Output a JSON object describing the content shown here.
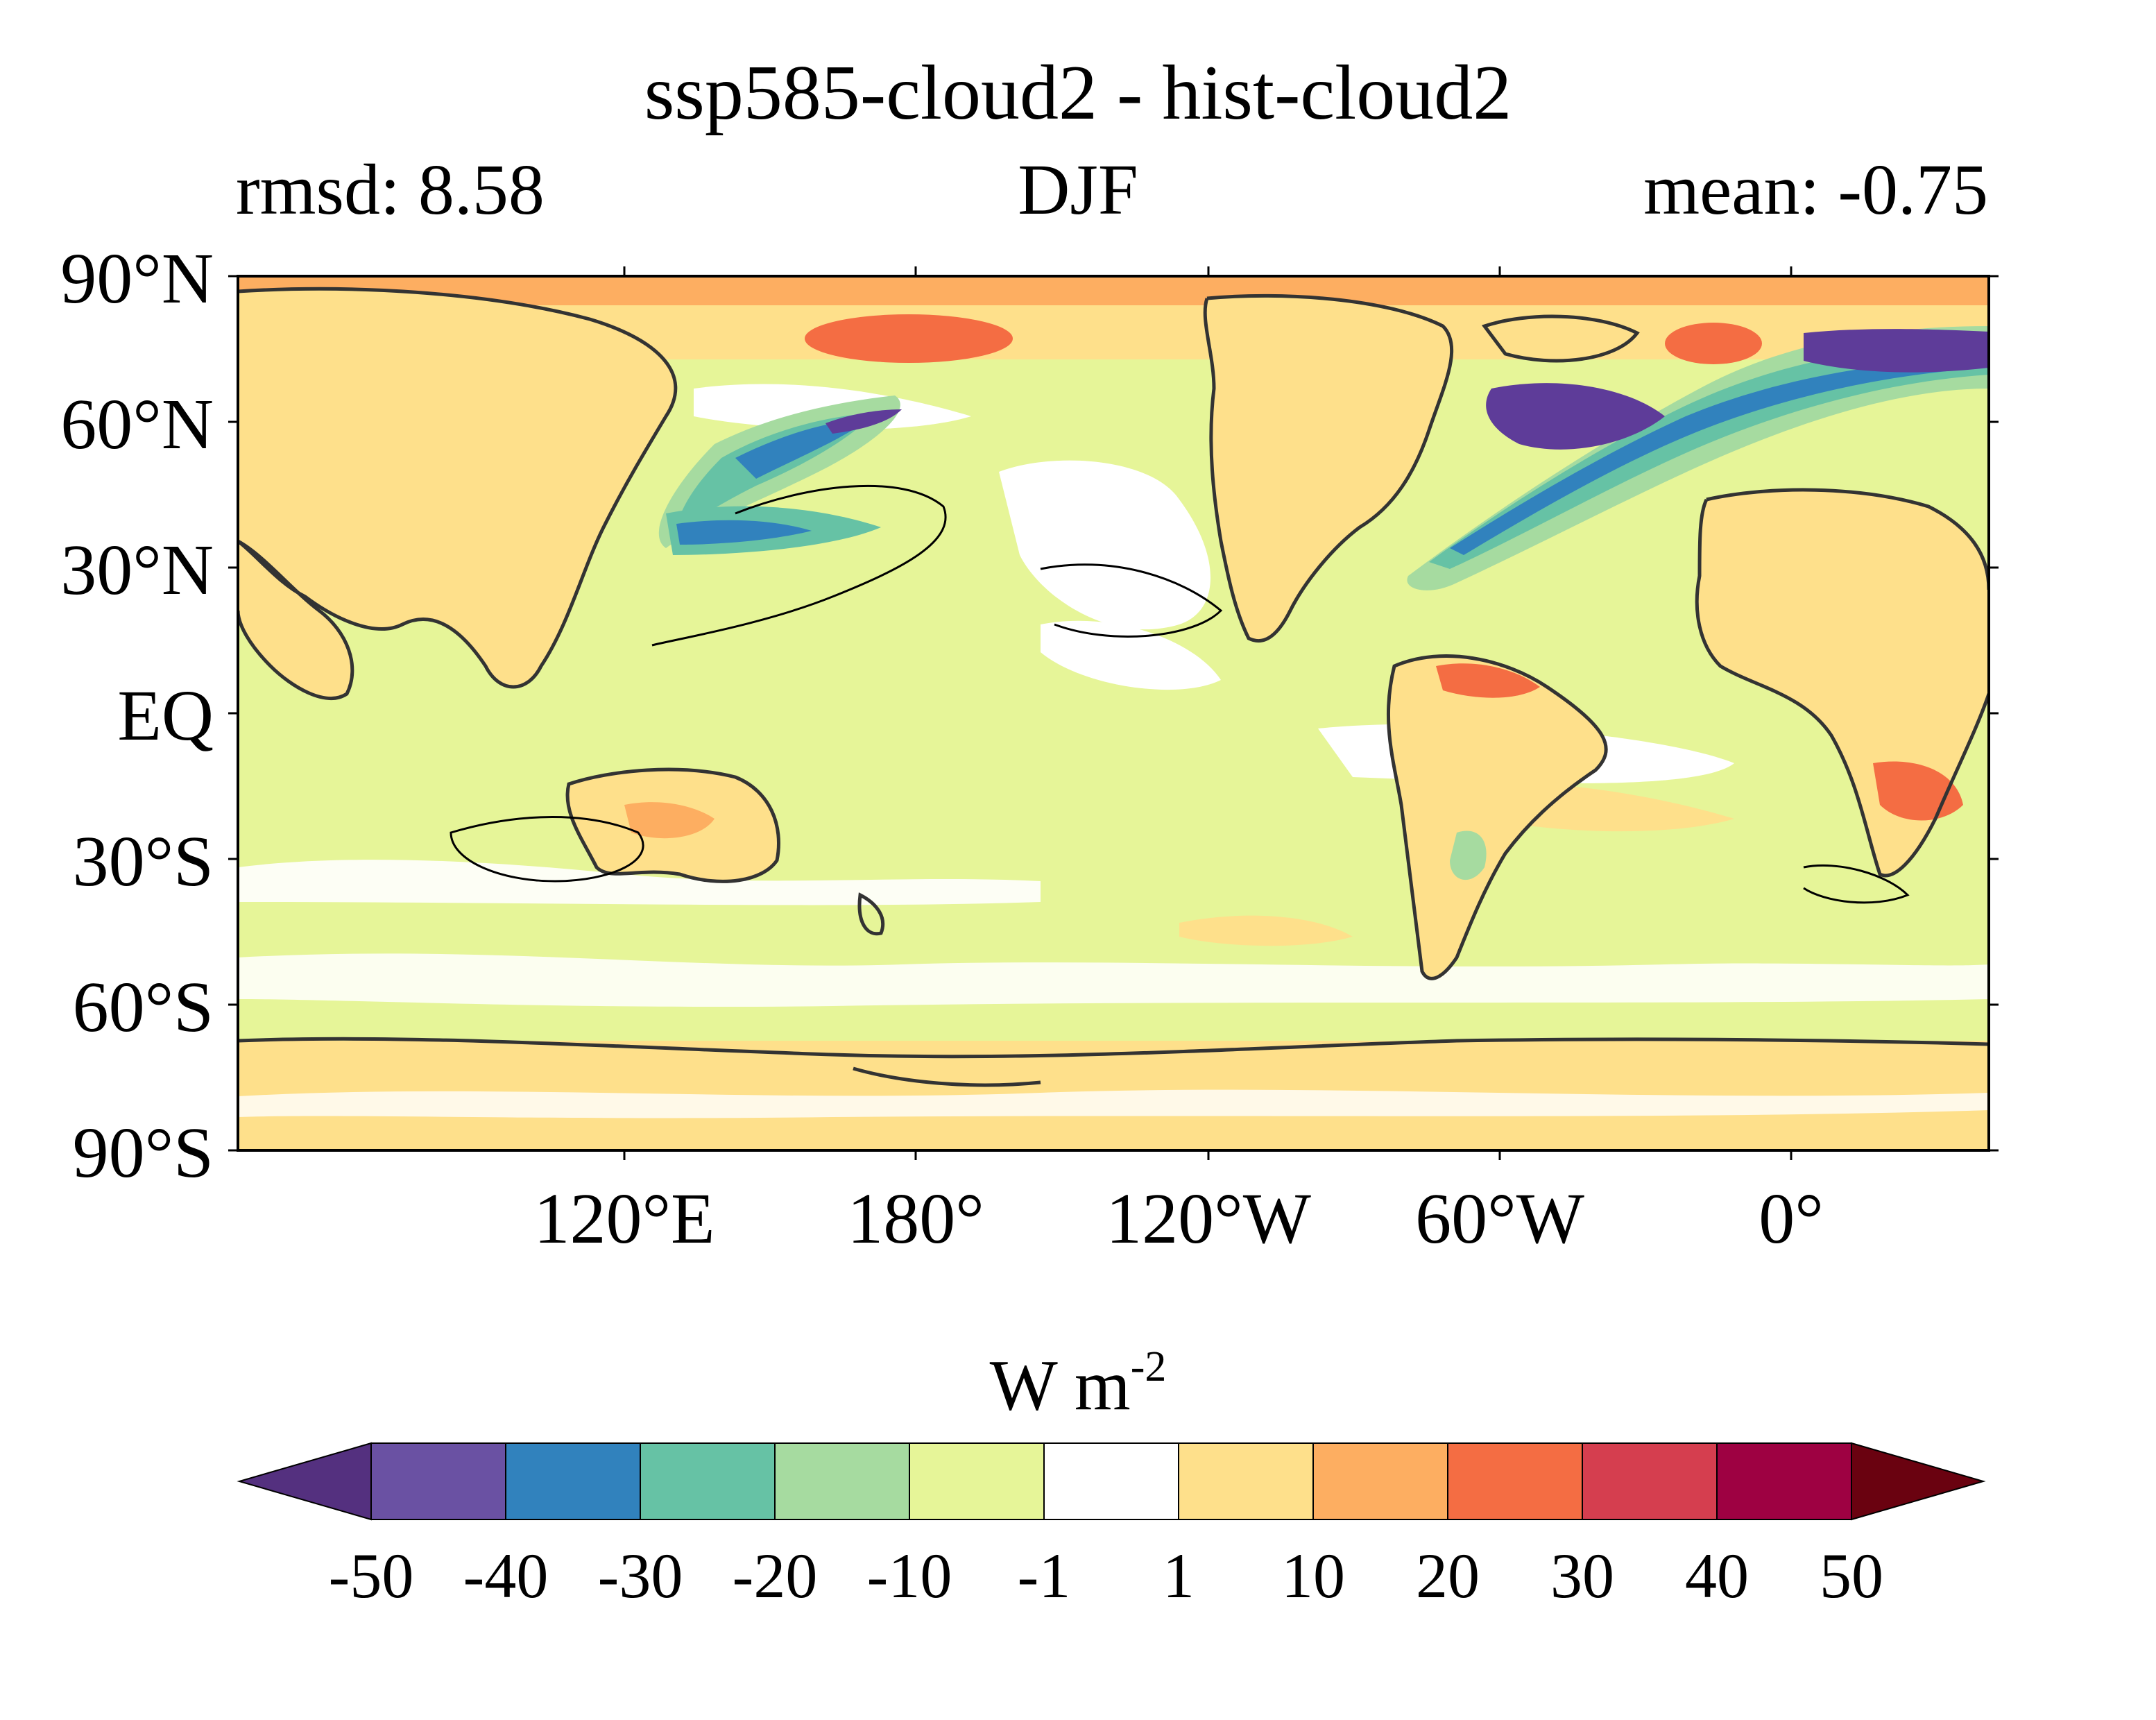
{
  "title": "ssp585-cloud2 - hist-cloud2",
  "stats": {
    "rmsd": "rmsd: 8.58",
    "season": "DJF",
    "mean": "mean: -0.75"
  },
  "lat_ticks": [
    "90°N",
    "60°N",
    "30°N",
    "EQ",
    "30°S",
    "60°S",
    "90°S"
  ],
  "lon_ticks": [
    "120°E",
    "180°",
    "120°W",
    "60°W",
    "0°"
  ],
  "colorbar": {
    "unit": "W m",
    "unit_exp": "-2",
    "ticks": [
      "-50",
      "-40",
      "-30",
      "-20",
      "-10",
      "-1",
      "1",
      "10",
      "20",
      "30",
      "40",
      "50"
    ],
    "colors": [
      "#5e3c99",
      "#6a51a3",
      "#3182bd",
      "#66c2a5",
      "#a6dba0",
      "#e6f598",
      "#ffffff",
      "#fee08b",
      "#fdae61",
      "#f46d43",
      "#d53e4f",
      "#9e0142"
    ],
    "under_color": "#54307f",
    "over_color": "#6a0210"
  },
  "palette": {
    "ocean": "#e6f598",
    "pos_light": "#fee08b",
    "pos_mid": "#fdae61",
    "pos_strong": "#f46d43",
    "neg_light": "#a6dba0",
    "neg_mid": "#66c2a5",
    "neg_blue": "#3182bd",
    "neg_purple": "#5e3c99"
  }
}
